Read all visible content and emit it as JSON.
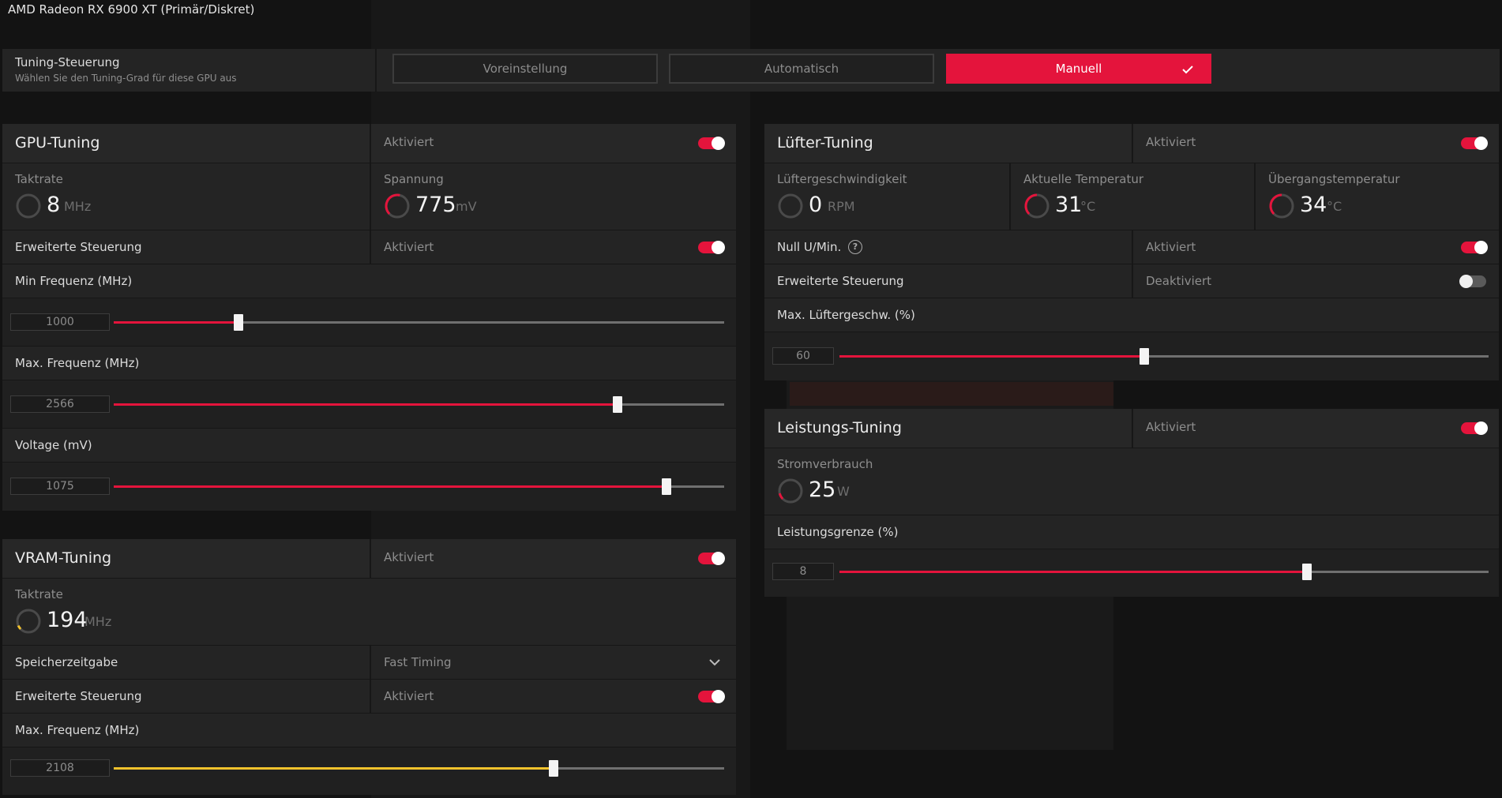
{
  "gpu_name": "AMD Radeon RX 6900 XT (Primär/Diskret)",
  "colors": {
    "accent": "#e4143c",
    "vram_accent": "#f2c22c",
    "panel": "#242424"
  },
  "tuning_control": {
    "title": "Tuning-Steuerung",
    "subtitle": "Wählen Sie den Tuning-Grad für diese GPU aus",
    "options": [
      "Voreinstellung",
      "Automatisch",
      "Manuell"
    ],
    "selected": "Manuell",
    "check_icon": "check-icon"
  },
  "gpu_tuning": {
    "title": "GPU-Tuning",
    "status": "Aktiviert",
    "metrics": [
      {
        "label": "Taktrate",
        "value": "8",
        "unit": "MHz",
        "gauge_fraction": 0.0
      },
      {
        "label": "Spannung",
        "value": "775",
        "unit": "mV",
        "gauge_fraction": 0.55
      }
    ],
    "advanced": {
      "label": "Erweiterte Steuerung",
      "status": "Aktiviert"
    },
    "sliders": [
      {
        "label": "Min Frequenz (MHz)",
        "value": "1000",
        "fraction": 0.205
      },
      {
        "label": "Max. Frequenz (MHz)",
        "value": "2566",
        "fraction": 0.825
      },
      {
        "label": "Voltage (mV)",
        "value": "1075",
        "fraction": 0.905
      }
    ]
  },
  "vram_tuning": {
    "title": "VRAM-Tuning",
    "status": "Aktiviert",
    "metric": {
      "label": "Taktrate",
      "value": "194",
      "unit": "MHz",
      "gauge_fraction": 0.08
    },
    "memory_timing": {
      "label": "Speicherzeitgabe",
      "value": "Fast Timing"
    },
    "advanced": {
      "label": "Erweiterte Steuerung",
      "status": "Aktiviert"
    },
    "slider": {
      "label": "Max. Frequenz (MHz)",
      "value": "2108",
      "fraction": 0.72
    }
  },
  "fan_tuning": {
    "title": "Lüfter-Tuning",
    "status": "Aktiviert",
    "metrics": [
      {
        "label": "Lüftergeschwindigkeit",
        "value": "0",
        "unit": "RPM",
        "gauge_fraction": 0.0
      },
      {
        "label": "Aktuelle Temperatur",
        "value": "31",
        "unit": "°C",
        "gauge_fraction": 0.5
      },
      {
        "label": "Übergangstemperatur",
        "value": "34",
        "unit": "°C",
        "gauge_fraction": 0.5
      }
    ],
    "zero_rpm": {
      "label": "Null U/Min.",
      "status": "Aktiviert",
      "help_icon": "help-icon"
    },
    "advanced": {
      "label": "Erweiterte Steuerung",
      "status": "Deaktiviert"
    },
    "slider": {
      "label": "Max. Lüftergeschw. (%)",
      "value": "60",
      "fraction": 0.47
    }
  },
  "power_tuning": {
    "title": "Leistungs-Tuning",
    "status": "Aktiviert",
    "metric": {
      "label": "Stromverbrauch",
      "value": "25",
      "unit": "W",
      "gauge_fraction": 0.12
    },
    "slider": {
      "label": "Leistungsgrenze (%)",
      "value": "8",
      "fraction": 0.72
    }
  }
}
